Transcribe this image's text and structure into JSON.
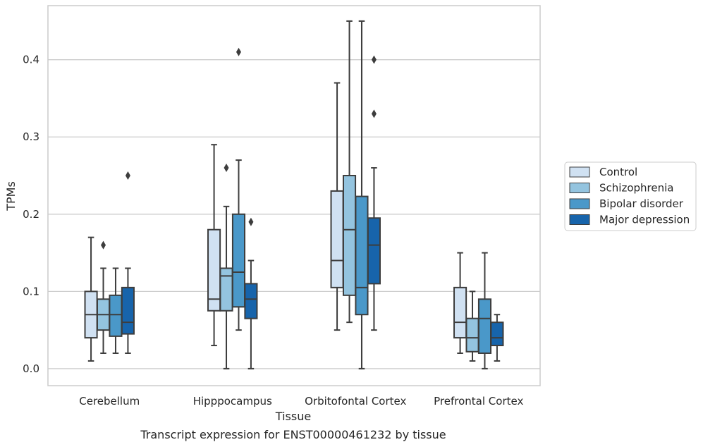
{
  "chart_data": {
    "type": "box",
    "caption": "Transcript expression for ENST00000461232 by tissue",
    "xlabel": "Tissue",
    "ylabel": "TPMs",
    "ylim": [
      -0.022,
      0.47
    ],
    "yticks": [
      0.0,
      0.1,
      0.2,
      0.3,
      0.4
    ],
    "ytick_labels": [
      "0.0",
      "0.1",
      "0.2",
      "0.3",
      "0.4"
    ],
    "grid": "horizontal",
    "legend_position": "right",
    "categories": [
      "Cerebellum",
      "Hipppocampus",
      "Orbitofontal Cortex",
      "Prefrontal Cortex"
    ],
    "series": [
      {
        "name": "Control",
        "color": "#d0e1f2",
        "boxes": [
          {
            "whislo": 0.01,
            "q1": 0.04,
            "med": 0.07,
            "q3": 0.1,
            "whishi": 0.17,
            "fliers": []
          },
          {
            "whislo": 0.03,
            "q1": 0.075,
            "med": 0.09,
            "q3": 0.18,
            "whishi": 0.29,
            "fliers": []
          },
          {
            "whislo": 0.05,
            "q1": 0.105,
            "med": 0.14,
            "q3": 0.23,
            "whishi": 0.37,
            "fliers": []
          },
          {
            "whislo": 0.02,
            "q1": 0.04,
            "med": 0.06,
            "q3": 0.105,
            "whishi": 0.15,
            "fliers": []
          }
        ]
      },
      {
        "name": "Schizophrenia",
        "color": "#94c4df",
        "boxes": [
          {
            "whislo": 0.02,
            "q1": 0.05,
            "med": 0.07,
            "q3": 0.09,
            "whishi": 0.13,
            "fliers": [
              0.16
            ]
          },
          {
            "whislo": 0.0,
            "q1": 0.075,
            "med": 0.12,
            "q3": 0.13,
            "whishi": 0.21,
            "fliers": [
              0.26
            ]
          },
          {
            "whislo": 0.06,
            "q1": 0.095,
            "med": 0.18,
            "q3": 0.25,
            "whishi": 0.45,
            "fliers": []
          },
          {
            "whislo": 0.01,
            "q1": 0.022,
            "med": 0.04,
            "q3": 0.065,
            "whishi": 0.1,
            "fliers": []
          }
        ]
      },
      {
        "name": "Bipolar disorder",
        "color": "#4a98c9",
        "boxes": [
          {
            "whislo": 0.02,
            "q1": 0.042,
            "med": 0.07,
            "q3": 0.095,
            "whishi": 0.13,
            "fliers": []
          },
          {
            "whislo": 0.05,
            "q1": 0.08,
            "med": 0.125,
            "q3": 0.2,
            "whishi": 0.27,
            "fliers": [
              0.41
            ]
          },
          {
            "whislo": 0.0,
            "q1": 0.07,
            "med": 0.105,
            "q3": 0.223,
            "whishi": 0.45,
            "fliers": []
          },
          {
            "whislo": 0.0,
            "q1": 0.02,
            "med": 0.065,
            "q3": 0.09,
            "whishi": 0.15,
            "fliers": []
          }
        ]
      },
      {
        "name": "Major depression",
        "color": "#1764ab",
        "boxes": [
          {
            "whislo": 0.02,
            "q1": 0.045,
            "med": 0.06,
            "q3": 0.105,
            "whishi": 0.13,
            "fliers": [
              0.25
            ]
          },
          {
            "whislo": 0.0,
            "q1": 0.065,
            "med": 0.09,
            "q3": 0.11,
            "whishi": 0.14,
            "fliers": [
              0.19
            ]
          },
          {
            "whislo": 0.05,
            "q1": 0.11,
            "med": 0.16,
            "q3": 0.195,
            "whishi": 0.26,
            "fliers": [
              0.33,
              0.4
            ]
          },
          {
            "whislo": 0.01,
            "q1": 0.03,
            "med": 0.04,
            "q3": 0.06,
            "whishi": 0.07,
            "fliers": []
          }
        ]
      }
    ]
  }
}
